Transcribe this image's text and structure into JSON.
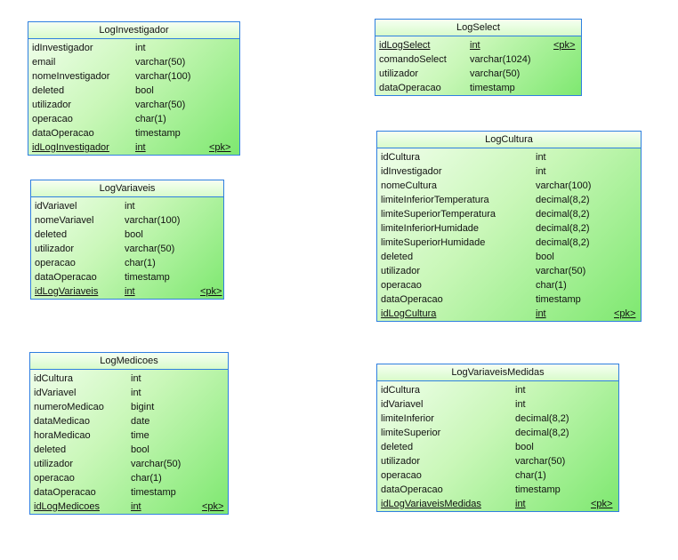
{
  "diagram": {
    "entities": [
      {
        "name": "LogInvestigador",
        "attributes": [
          {
            "name": "idInvestigador",
            "type": "int",
            "key": ""
          },
          {
            "name": "email",
            "type": "varchar(50)",
            "key": ""
          },
          {
            "name": "nomeInvestigador",
            "type": "varchar(100)",
            "key": ""
          },
          {
            "name": "deleted",
            "type": "bool",
            "key": ""
          },
          {
            "name": "utilizador",
            "type": "varchar(50)",
            "key": ""
          },
          {
            "name": "operacao",
            "type": "char(1)",
            "key": ""
          },
          {
            "name": "dataOperacao",
            "type": "timestamp",
            "key": ""
          },
          {
            "name": "idLogInvestigador",
            "type": "int",
            "key": "<pk>"
          }
        ]
      },
      {
        "name": "LogSelect",
        "attributes": [
          {
            "name": "idLogSelect",
            "type": "int",
            "key": "<pk>"
          },
          {
            "name": "comandoSelect",
            "type": "varchar(1024)",
            "key": ""
          },
          {
            "name": "utilizador",
            "type": "varchar(50)",
            "key": ""
          },
          {
            "name": "dataOperacao",
            "type": "timestamp",
            "key": ""
          }
        ]
      },
      {
        "name": "LogVariaveis",
        "attributes": [
          {
            "name": "idVariavel",
            "type": "int",
            "key": ""
          },
          {
            "name": "nomeVariavel",
            "type": "varchar(100)",
            "key": ""
          },
          {
            "name": "deleted",
            "type": "bool",
            "key": ""
          },
          {
            "name": "utilizador",
            "type": "varchar(50)",
            "key": ""
          },
          {
            "name": "operacao",
            "type": "char(1)",
            "key": ""
          },
          {
            "name": "dataOperacao",
            "type": "timestamp",
            "key": ""
          },
          {
            "name": "idLogVariaveis",
            "type": "int",
            "key": "<pk>"
          }
        ]
      },
      {
        "name": "LogCultura",
        "attributes": [
          {
            "name": "idCultura",
            "type": "int",
            "key": ""
          },
          {
            "name": "idInvestigador",
            "type": "int",
            "key": ""
          },
          {
            "name": "nomeCultura",
            "type": "varchar(100)",
            "key": ""
          },
          {
            "name": "limiteInferiorTemperatura",
            "type": "decimal(8,2)",
            "key": ""
          },
          {
            "name": "limiteSuperiorTemperatura",
            "type": "decimal(8,2)",
            "key": ""
          },
          {
            "name": "limiteInferiorHumidade",
            "type": "decimal(8,2)",
            "key": ""
          },
          {
            "name": "limiteSuperiorHumidade",
            "type": "decimal(8,2)",
            "key": ""
          },
          {
            "name": "deleted",
            "type": "bool",
            "key": ""
          },
          {
            "name": "utilizador",
            "type": "varchar(50)",
            "key": ""
          },
          {
            "name": "operacao",
            "type": "char(1)",
            "key": ""
          },
          {
            "name": "dataOperacao",
            "type": "timestamp",
            "key": ""
          },
          {
            "name": "idLogCultura",
            "type": "int",
            "key": "<pk>"
          }
        ]
      },
      {
        "name": "LogMedicoes",
        "attributes": [
          {
            "name": "idCultura",
            "type": "int",
            "key": ""
          },
          {
            "name": "idVariavel",
            "type": "int",
            "key": ""
          },
          {
            "name": "numeroMedicao",
            "type": "bigint",
            "key": ""
          },
          {
            "name": "dataMedicao",
            "type": "date",
            "key": ""
          },
          {
            "name": "horaMedicao",
            "type": "time",
            "key": ""
          },
          {
            "name": "deleted",
            "type": "bool",
            "key": ""
          },
          {
            "name": "utilizador",
            "type": "varchar(50)",
            "key": ""
          },
          {
            "name": "operacao",
            "type": "char(1)",
            "key": ""
          },
          {
            "name": "dataOperacao",
            "type": "timestamp",
            "key": ""
          },
          {
            "name": "idLogMedicoes",
            "type": "int",
            "key": "<pk>"
          }
        ]
      },
      {
        "name": "LogVariaveisMedidas",
        "attributes": [
          {
            "name": "idCultura",
            "type": "int",
            "key": ""
          },
          {
            "name": "idVariavel",
            "type": "int",
            "key": ""
          },
          {
            "name": "limiteInferior",
            "type": "decimal(8,2)",
            "key": ""
          },
          {
            "name": "limiteSuperior",
            "type": "decimal(8,2)",
            "key": ""
          },
          {
            "name": "deleted",
            "type": "bool",
            "key": ""
          },
          {
            "name": "utilizador",
            "type": "varchar(50)",
            "key": ""
          },
          {
            "name": "operacao",
            "type": "char(1)",
            "key": ""
          },
          {
            "name": "dataOperacao",
            "type": "timestamp",
            "key": ""
          },
          {
            "name": "idLogVariaveisMedidas",
            "type": "int",
            "key": "<pk>"
          }
        ]
      }
    ]
  }
}
